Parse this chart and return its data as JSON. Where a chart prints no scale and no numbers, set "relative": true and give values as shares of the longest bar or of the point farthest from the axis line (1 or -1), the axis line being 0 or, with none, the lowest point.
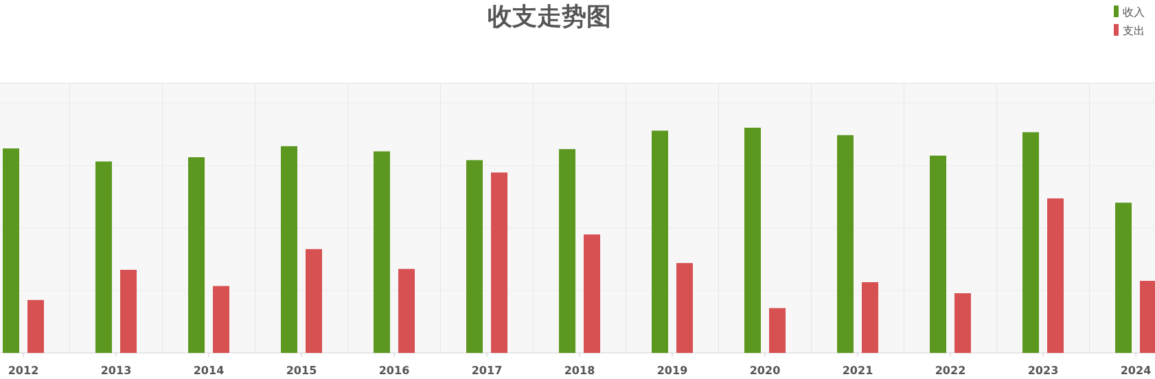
{
  "chart_data": {
    "type": "bar",
    "title": "收支走势图",
    "relative": true,
    "grid": true,
    "legend": "top right",
    "categories": [
      "2012",
      "2013",
      "2014",
      "2015",
      "2016",
      "2017",
      "2018",
      "2019",
      "2020",
      "2021",
      "2022",
      "2023",
      "2024"
    ],
    "series": [
      {
        "name": "收入",
        "color": "#5c9820",
        "values": [
          0.908,
          0.85,
          0.869,
          0.918,
          0.895,
          0.856,
          0.905,
          0.987,
          1,
          0.967,
          0.876,
          0.98,
          0.667
        ]
      },
      {
        "name": "支出",
        "color": "#d75052",
        "values": [
          0.235,
          0.369,
          0.297,
          0.461,
          0.373,
          0.801,
          0.526,
          0.399,
          0.199,
          0.314,
          0.265,
          0.686,
          0.32
        ]
      }
    ]
  }
}
